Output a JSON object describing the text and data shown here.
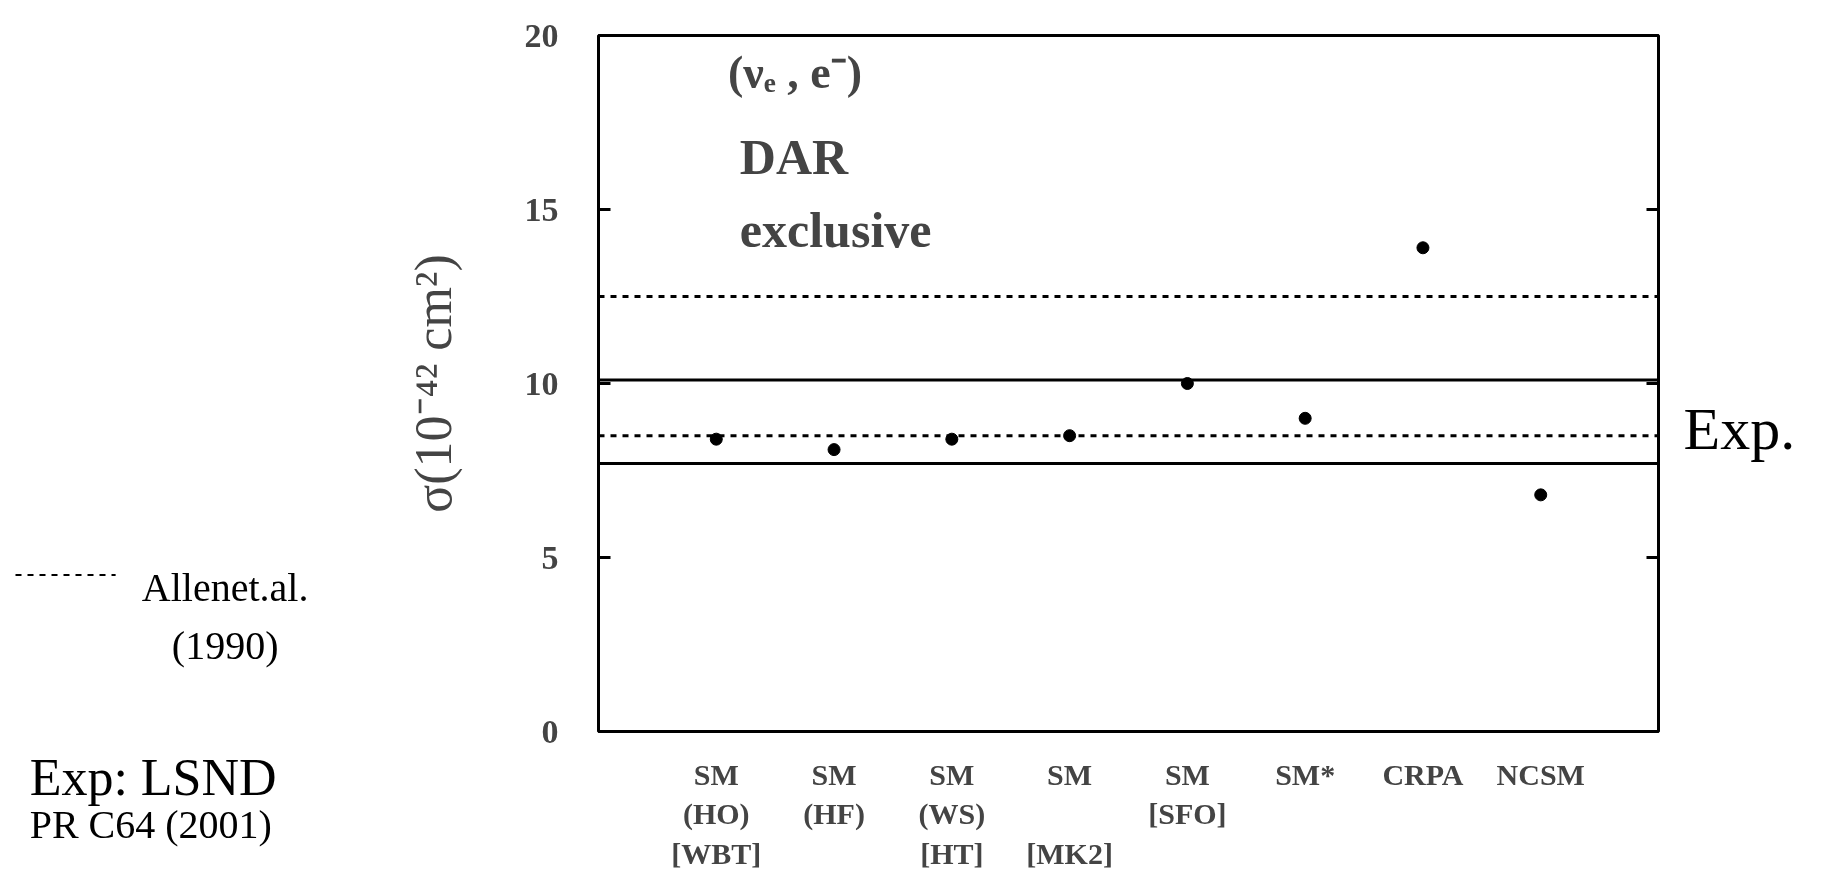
{
  "chart_data": {
    "type": "scatter",
    "ylabel": "σ(10⁻⁴² cm²)",
    "categories": [
      "SM\n(HO)\n[WBT]",
      "SM\n(HF)",
      "SM\n(WS)\n[HT]",
      "SM\n\n[MK2]",
      "SM\n[SFO]",
      "SM*",
      "CRPA",
      "NCSM"
    ],
    "values": [
      8.4,
      8.1,
      8.4,
      8.5,
      10.0,
      9.0,
      13.9,
      6.8
    ],
    "color": "#000000",
    "marker": "circle",
    "ylim": [
      0,
      20
    ],
    "yticks": [
      0,
      5,
      10,
      15,
      20
    ],
    "grid": false,
    "ref_lines": [
      {
        "axis": "y",
        "value": 10.1,
        "label": null,
        "color": "#000000",
        "line_style": "solid"
      },
      {
        "axis": "y",
        "value": 7.7,
        "label": "Exp.",
        "color": "#000000",
        "line_style": "solid"
      },
      {
        "axis": "y",
        "value": 12.5,
        "label": null,
        "color": "#000000",
        "line_style": "dashed"
      },
      {
        "axis": "y",
        "value": 8.5,
        "label": "Allenet.al.\n(1990)",
        "color": "#000000",
        "line_style": "dashed"
      }
    ],
    "annotations": [
      "(νₑ , e⁻)",
      "DAR",
      "exclusive",
      "Exp: LSND",
      "PR C64 (2001)"
    ]
  }
}
